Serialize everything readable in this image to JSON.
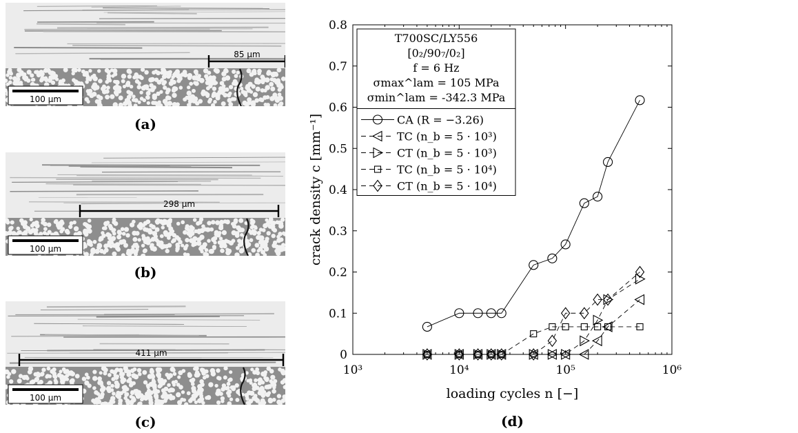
{
  "panels": [
    {
      "id": "a",
      "caption": "(a)",
      "measure_label": "85 µm",
      "scale_label": "100 µm",
      "crack_side": "right"
    },
    {
      "id": "b",
      "caption": "(b)",
      "measure_label": "298 µm",
      "scale_label": "100 µm",
      "crack_side": "right"
    },
    {
      "id": "c",
      "caption": "(c)",
      "measure_label": "411 µm",
      "scale_label": "100 µm",
      "crack_side": "right"
    }
  ],
  "chart_caption": "(d)",
  "chart_data": {
    "type": "line",
    "xlabel": "loading cycles n [−]",
    "ylabel": "crack density c [mm⁻¹]",
    "xscale": "log",
    "xlim": [
      1000,
      1000000
    ],
    "ylim": [
      0,
      0.8
    ],
    "xticks": [
      "10³",
      "10⁴",
      "10⁵",
      "10⁶"
    ],
    "yticks": [
      "0",
      "0.1",
      "0.2",
      "0.3",
      "0.4",
      "0.5",
      "0.6",
      "0.7",
      "0.8"
    ],
    "info_box": [
      "T700SC/LY556",
      "[0₂/90₇/0₂]",
      "f = 6 Hz",
      "σmax^lam = 105 MPa",
      "σmin^lam = -342.3 MPa"
    ],
    "legend_placement": "top-left",
    "series": [
      {
        "name": "CA (R = −3.26)",
        "marker": "circle",
        "dash": "solid",
        "x": [
          5000,
          10000,
          15000,
          20000,
          25000,
          50000,
          75000,
          100000,
          150000,
          200000,
          250000,
          500000
        ],
        "y": [
          0.067,
          0.1,
          0.1,
          0.1,
          0.1,
          0.217,
          0.233,
          0.267,
          0.367,
          0.383,
          0.467,
          0.617
        ]
      },
      {
        "name": "TC (n_b = 5 · 10³)",
        "marker": "triangle-left",
        "dash": "dashed",
        "x": [
          5000,
          10000,
          15000,
          20000,
          25000,
          50000,
          75000,
          100000,
          150000,
          200000,
          250000,
          500000
        ],
        "y": [
          0,
          0,
          0,
          0,
          0,
          0,
          0,
          0,
          0,
          0.033,
          0.067,
          0.133
        ]
      },
      {
        "name": "CT (n_b = 5 · 10³)",
        "marker": "triangle-right",
        "dash": "dashed",
        "x": [
          5000,
          10000,
          15000,
          20000,
          25000,
          50000,
          75000,
          100000,
          150000,
          200000,
          250000,
          500000
        ],
        "y": [
          0,
          0,
          0,
          0,
          0,
          0,
          0,
          0,
          0.033,
          0.083,
          0.133,
          0.183
        ]
      },
      {
        "name": "TC (n_b = 5 · 10⁴)",
        "marker": "square",
        "dash": "dashed",
        "x": [
          5000,
          10000,
          15000,
          20000,
          25000,
          50000,
          75000,
          100000,
          150000,
          200000,
          250000,
          500000
        ],
        "y": [
          0,
          0,
          0,
          0,
          0,
          0.05,
          0.067,
          0.067,
          0.067,
          0.067,
          0.067,
          0.067
        ]
      },
      {
        "name": "CT (n_b = 5 · 10⁴)",
        "marker": "diamond",
        "dash": "dashed",
        "x": [
          5000,
          10000,
          15000,
          20000,
          25000,
          50000,
          75000,
          100000,
          150000,
          200000,
          250000,
          500000
        ],
        "y": [
          0,
          0,
          0,
          0,
          0,
          0,
          0.033,
          0.1,
          0.1,
          0.133,
          0.133,
          0.2
        ]
      }
    ]
  }
}
